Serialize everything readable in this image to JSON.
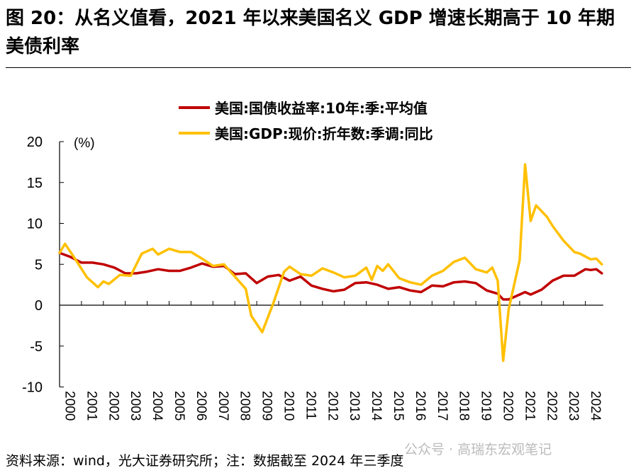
{
  "title": "图 20：从名义值看，2021 年以来美国名义 GDP 增速长期高于 10 年期美债利率",
  "source": "资料来源：wind，光大证券研究所；注：数据截至 2024 年三季度",
  "watermark": "公众号 · 高瑞东宏观笔记",
  "chart_data": {
    "type": "line",
    "unit_label": "(%)",
    "ylim": [
      -10,
      20
    ],
    "yticks": [
      20,
      15,
      10,
      5,
      0,
      -5,
      -10
    ],
    "xlim": [
      2000,
      2024.75
    ],
    "xticks": [
      "2000",
      "2001",
      "2002",
      "2003",
      "2004",
      "2005",
      "2006",
      "2007",
      "2008",
      "2009",
      "2010",
      "2011",
      "2012",
      "2013",
      "2014",
      "2015",
      "2016",
      "2017",
      "2018",
      "2019",
      "2020",
      "2021",
      "2022",
      "2023",
      "2024"
    ],
    "grid": false,
    "legend_position": "top",
    "series": [
      {
        "name": "美国:国债收益率:10年:季:平均值",
        "color": "#C00000",
        "x": [
          2000,
          2000.5,
          2001,
          2001.5,
          2002,
          2002.5,
          2003,
          2003.5,
          2004,
          2004.5,
          2005,
          2005.5,
          2006,
          2006.5,
          2007,
          2007.5,
          2008,
          2008.5,
          2009,
          2009.5,
          2010,
          2010.5,
          2011,
          2011.5,
          2012,
          2012.5,
          2013,
          2013.5,
          2014,
          2014.5,
          2015,
          2015.5,
          2016,
          2016.5,
          2017,
          2017.5,
          2018,
          2018.5,
          2019,
          2019.5,
          2020,
          2020.25,
          2020.5,
          2021,
          2021.25,
          2021.5,
          2022,
          2022.5,
          2023,
          2023.5,
          2024,
          2024.25,
          2024.5,
          2024.75
        ],
        "y": [
          6.4,
          5.9,
          5.2,
          5.2,
          5.0,
          4.6,
          3.9,
          3.9,
          4.1,
          4.4,
          4.2,
          4.2,
          4.6,
          5.1,
          4.7,
          4.8,
          3.8,
          3.9,
          2.7,
          3.5,
          3.7,
          3.0,
          3.5,
          2.4,
          2.0,
          1.7,
          1.9,
          2.7,
          2.8,
          2.5,
          2.0,
          2.2,
          1.8,
          1.6,
          2.4,
          2.3,
          2.8,
          2.9,
          2.7,
          1.8,
          1.4,
          0.7,
          0.7,
          1.3,
          1.6,
          1.3,
          1.9,
          3.0,
          3.6,
          3.6,
          4.4,
          4.3,
          4.4,
          3.9
        ]
      },
      {
        "name": "美国:GDP:现价:折年数:季调:同比",
        "color": "#FFC000",
        "x": [
          2000,
          2000.25,
          2000.75,
          2001.25,
          2001.75,
          2002,
          2002.25,
          2002.75,
          2003.25,
          2003.75,
          2004.25,
          2004.5,
          2005,
          2005.5,
          2006,
          2006.5,
          2007,
          2007.5,
          2008,
          2008.5,
          2008.75,
          2009.25,
          2009.75,
          2010.25,
          2010.5,
          2011,
          2011.5,
          2012,
          2012.5,
          2013,
          2013.5,
          2014,
          2014.25,
          2014.5,
          2014.75,
          2015,
          2015.5,
          2016,
          2016.5,
          2017,
          2017.5,
          2018,
          2018.5,
          2019,
          2019.5,
          2019.75,
          2020,
          2020.25,
          2020.5,
          2021,
          2021.25,
          2021.5,
          2021.75,
          2022.25,
          2022.5,
          2023,
          2023.5,
          2023.75,
          2024.25,
          2024.5,
          2024.75
        ],
        "y": [
          6.4,
          7.5,
          5.5,
          3.4,
          2.2,
          2.9,
          2.6,
          3.7,
          3.6,
          6.3,
          6.9,
          6.2,
          6.9,
          6.5,
          6.5,
          5.7,
          4.8,
          5.0,
          3.5,
          2.0,
          -1.3,
          -3.3,
          0.2,
          4.1,
          4.7,
          3.8,
          3.6,
          4.5,
          4.0,
          3.4,
          3.6,
          4.6,
          3.1,
          4.8,
          4.2,
          5.0,
          3.3,
          2.8,
          2.5,
          3.6,
          4.2,
          5.3,
          5.8,
          4.4,
          4.0,
          4.6,
          3.0,
          -6.8,
          -0.5,
          5.5,
          17.2,
          10.3,
          12.2,
          10.8,
          9.7,
          7.9,
          6.5,
          6.3,
          5.6,
          5.7,
          5.0
        ]
      }
    ]
  }
}
